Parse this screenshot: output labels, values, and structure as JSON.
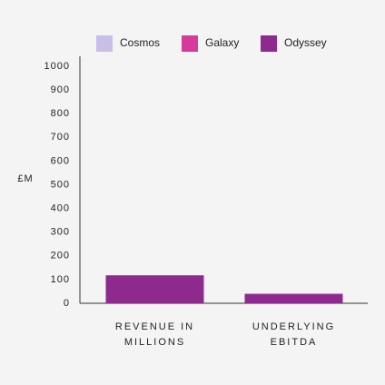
{
  "chart_data": {
    "type": "stacked-bar",
    "y_label": "£M",
    "categories": [
      "REVENUE IN MILLIONS",
      "UNDERLYING EBITDA"
    ],
    "series": [
      {
        "name": "Cosmos",
        "color": "#c9bfe6",
        "values": [
          null,
          null
        ]
      },
      {
        "name": "Galaxy",
        "color": "#d63a9a",
        "values": [
          null,
          null
        ]
      },
      {
        "name": "Odyssey",
        "color": "#8e2a8e",
        "values": [
          118,
          40
        ]
      }
    ],
    "ylim": [
      0,
      1000
    ],
    "yticks": [
      0,
      100,
      200,
      300,
      400,
      500,
      600,
      700,
      800,
      900,
      1000
    ],
    "grid": false,
    "legend": "top"
  }
}
